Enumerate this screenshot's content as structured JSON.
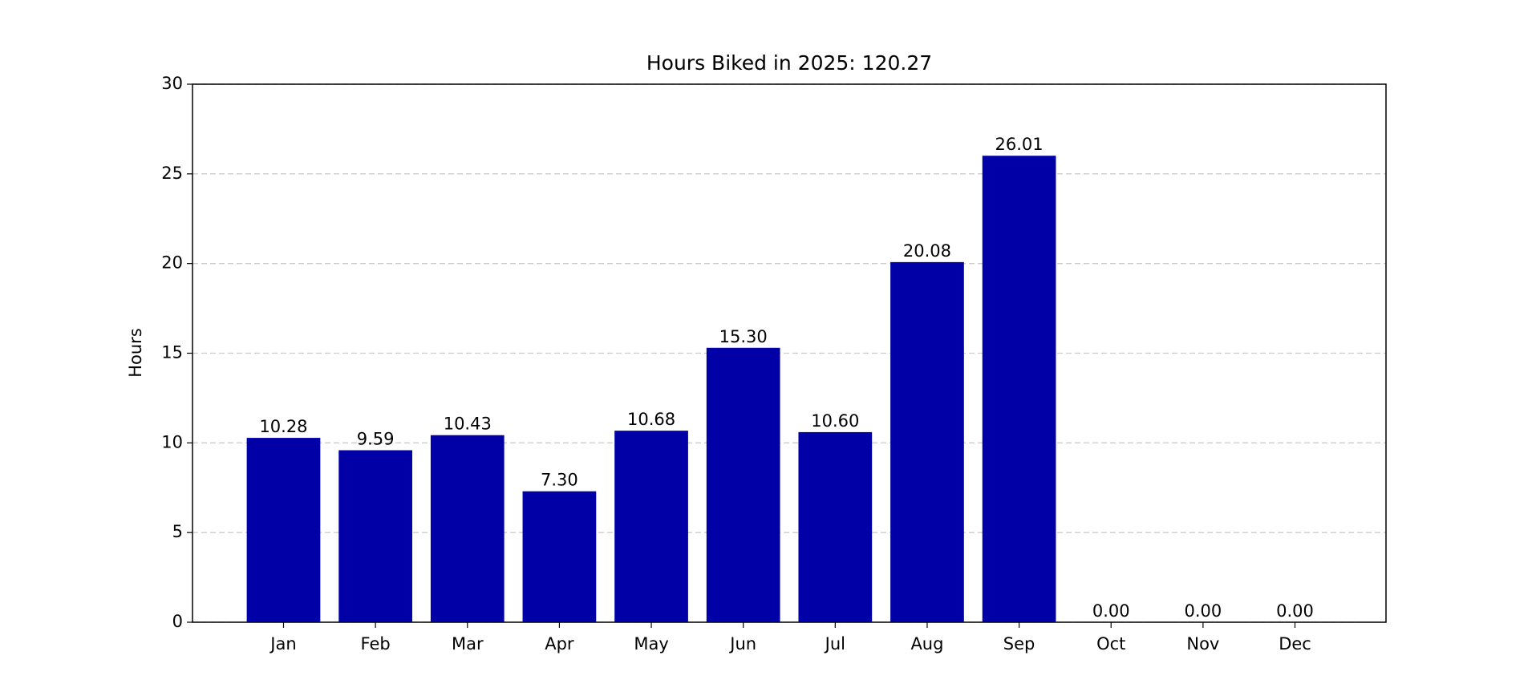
{
  "chart_data": {
    "type": "bar",
    "title": "Hours Biked in 2025: 120.27",
    "ylabel": "Hours",
    "categories": [
      "Jan",
      "Feb",
      "Mar",
      "Apr",
      "May",
      "Jun",
      "Jul",
      "Aug",
      "Sep",
      "Oct",
      "Nov",
      "Dec"
    ],
    "values": [
      10.28,
      9.59,
      10.43,
      7.3,
      10.68,
      15.3,
      10.6,
      20.08,
      26.01,
      0,
      0,
      0
    ],
    "value_labels": [
      "10.28",
      "9.59",
      "10.43",
      "7.30",
      "10.68",
      "15.30",
      "10.60",
      "20.08",
      "26.01",
      "0.00",
      "0.00",
      "0.00"
    ],
    "color": "#0000a6",
    "ylim": [
      0,
      30
    ],
    "yticks": [
      0,
      5,
      10,
      15,
      20,
      25,
      30
    ],
    "grid": true
  }
}
